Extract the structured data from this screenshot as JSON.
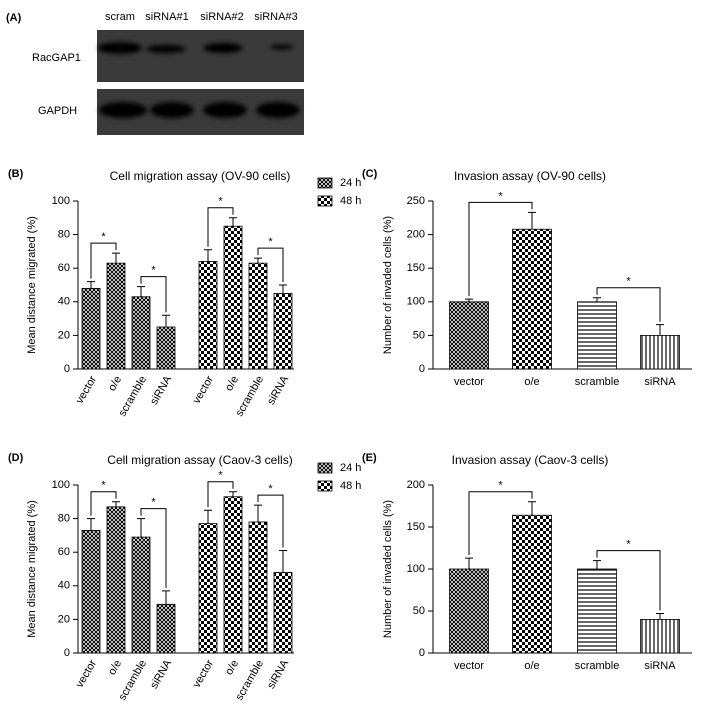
{
  "blot": {
    "panel": "(A)",
    "lanes": [
      "scram",
      "siRNA#1",
      "siRNA#2",
      "siRNA#3"
    ],
    "rows": [
      "RacGAP1",
      "GAPDH"
    ]
  },
  "chart_data": [
    {
      "type": "grouped_bar",
      "panel": "(B)",
      "title": "Cell migration assay (OV-90 cells)",
      "y_label": "Mean distance migrated (%)",
      "categories": [
        "vector",
        "o/e",
        "scramble",
        "siRNA",
        "vector",
        "o/e",
        "scramble",
        "siRNA"
      ],
      "series": [
        {
          "name": "24 h",
          "pattern": "crosshatch",
          "values": [
            48,
            63,
            43,
            25,
            null,
            null,
            null,
            null
          ],
          "errors": [
            4,
            6,
            6,
            7,
            null,
            null,
            null,
            null
          ]
        },
        {
          "name": "48 h",
          "pattern": "checker",
          "values": [
            null,
            null,
            null,
            null,
            64,
            85,
            63,
            45
          ],
          "errors": [
            null,
            null,
            null,
            null,
            7,
            5,
            3,
            5
          ]
        }
      ],
      "ylim": [
        0,
        100
      ],
      "yticks": [
        0,
        20,
        40,
        60,
        80,
        100
      ],
      "annotations": [
        {
          "label": "*",
          "between": [
            0,
            1
          ]
        },
        {
          "label": "*",
          "between": [
            2,
            3
          ]
        },
        {
          "label": "*",
          "between": [
            4,
            5
          ]
        },
        {
          "label": "*",
          "between": [
            6,
            7
          ]
        }
      ]
    },
    {
      "type": "bar",
      "panel": "(C)",
      "title": "Invasion assay (OV-90 cells)",
      "y_label": "Number of invaded cells (%)",
      "categories": [
        "vector",
        "o/e",
        "scramble",
        "siRNA"
      ],
      "patterns": [
        "crosshatch",
        "checker",
        "horizontal",
        "vertical"
      ],
      "values": [
        100,
        208,
        100,
        50
      ],
      "errors": [
        4,
        25,
        6,
        16
      ],
      "ylim": [
        0,
        250
      ],
      "yticks": [
        0,
        50,
        100,
        150,
        200,
        250
      ],
      "annotations": [
        {
          "label": "*",
          "between": [
            0,
            1
          ]
        },
        {
          "label": "*",
          "between": [
            2,
            3
          ]
        }
      ]
    },
    {
      "type": "grouped_bar",
      "panel": "(D)",
      "title": "Cell migration assay (Caov-3 cells)",
      "y_label": "Mean distance migrated (%)",
      "categories": [
        "vector",
        "o/e",
        "scramble",
        "siRNA",
        "vector",
        "o/e",
        "scramble",
        "siRNA"
      ],
      "series": [
        {
          "name": "24 h",
          "pattern": "crosshatch",
          "values": [
            73,
            87,
            69,
            29,
            null,
            null,
            null,
            null
          ],
          "errors": [
            7,
            3,
            11,
            8,
            null,
            null,
            null,
            null
          ]
        },
        {
          "name": "48 h",
          "pattern": "checker",
          "values": [
            null,
            null,
            null,
            null,
            77,
            93,
            78,
            48
          ],
          "errors": [
            null,
            null,
            null,
            null,
            8,
            3,
            10,
            13
          ]
        }
      ],
      "ylim": [
        0,
        100
      ],
      "yticks": [
        0,
        20,
        40,
        60,
        80,
        100
      ],
      "annotations": [
        {
          "label": "*",
          "between": [
            0,
            1
          ]
        },
        {
          "label": "*",
          "between": [
            2,
            3
          ]
        },
        {
          "label": "*",
          "between": [
            4,
            5
          ]
        },
        {
          "label": "*",
          "between": [
            6,
            7
          ]
        }
      ]
    },
    {
      "type": "bar",
      "panel": "(E)",
      "title": "Invasion assay (Caov-3 cells)",
      "y_label": "Number of invaded cells (%)",
      "categories": [
        "vector",
        "o/e",
        "scramble",
        "siRNA"
      ],
      "patterns": [
        "crosshatch",
        "checker",
        "horizontal",
        "vertical"
      ],
      "values": [
        100,
        164,
        100,
        40
      ],
      "errors": [
        13,
        16,
        10,
        7
      ],
      "ylim": [
        0,
        200
      ],
      "yticks": [
        0,
        50,
        100,
        150,
        200
      ],
      "annotations": [
        {
          "label": "*",
          "between": [
            0,
            1
          ]
        },
        {
          "label": "*",
          "between": [
            2,
            3
          ]
        }
      ]
    }
  ]
}
